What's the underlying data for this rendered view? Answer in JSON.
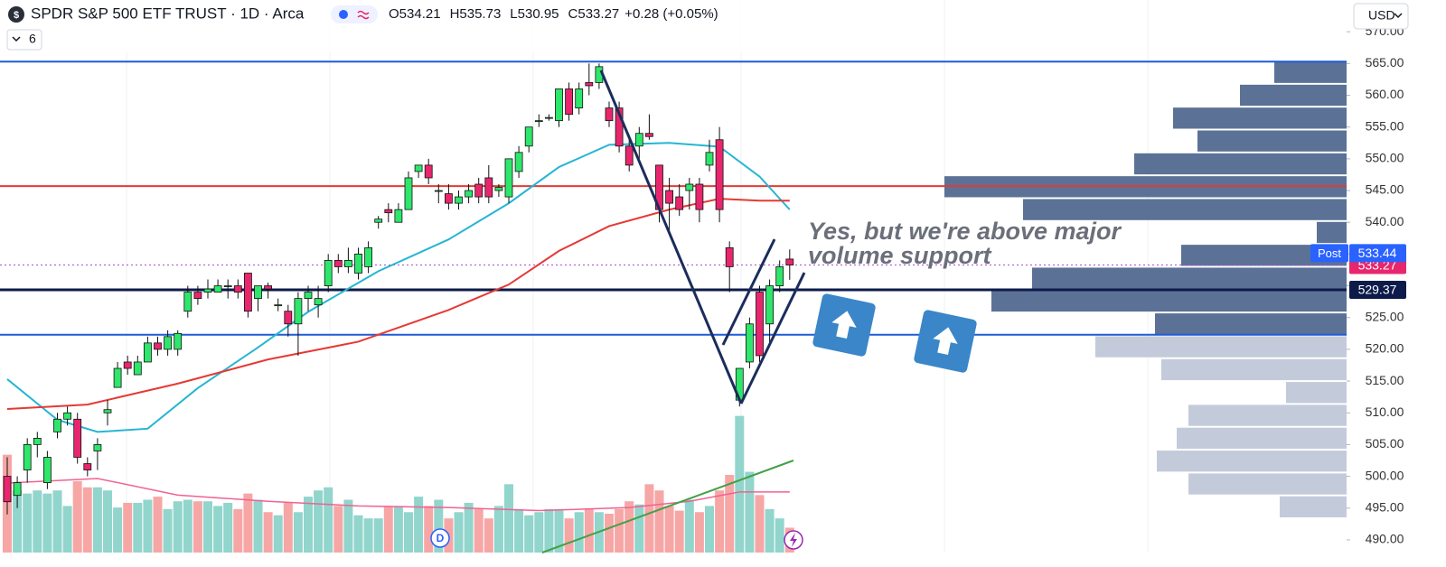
{
  "chart_data": {
    "type": "candlestick",
    "title": "SPDR S&P 500 ETF TRUST · 1D · Arca",
    "ohlc_labels": [
      "O",
      "H",
      "L",
      "C"
    ],
    "change": "+0.28 (+0.05%)",
    "indicator_count": 6,
    "currency": "USD",
    "post_label": "Post",
    "post_price": 533.44,
    "annotation": [
      "Yes, but we're above major",
      "volume support"
    ],
    "event_marker": "D",
    "up_color": "#2ee66b",
    "down_color": "#e8266d",
    "volume_up_color": "#91d5cc",
    "volume_down_color": "#f7a6a6",
    "ylim": [
      488,
      575
    ],
    "yticks": [
      {
        "value": 490,
        "label": "490.00"
      },
      {
        "value": 495,
        "label": "495.00"
      },
      {
        "value": 500,
        "label": "500.00"
      },
      {
        "value": 505,
        "label": "505.00"
      },
      {
        "value": 510,
        "label": "510.00"
      },
      {
        "value": 515,
        "label": "515.00"
      },
      {
        "value": 520,
        "label": "520.00"
      },
      {
        "value": 525,
        "label": "525.00"
      },
      {
        "value": 530,
        "label": "530.00"
      },
      {
        "value": 535,
        "label": "535.00"
      },
      {
        "value": 540,
        "label": "540.00"
      },
      {
        "value": 545,
        "label": "545.00"
      },
      {
        "value": 550,
        "label": "550.00"
      },
      {
        "value": 555,
        "label": "555.00"
      },
      {
        "value": 560,
        "label": "560.00"
      },
      {
        "value": 565,
        "label": "565.00"
      },
      {
        "value": 570,
        "label": "570.00"
      }
    ],
    "open": [
      500,
      497,
      501,
      505,
      499,
      507,
      509,
      509,
      502,
      504,
      510,
      514,
      518,
      516,
      518,
      521,
      520,
      520,
      526,
      529,
      529,
      529,
      530,
      530,
      532,
      528,
      530,
      527,
      526,
      524,
      528,
      527,
      530,
      534,
      533,
      532,
      533,
      540,
      542,
      540,
      542,
      548,
      549,
      545,
      544.5,
      543,
      544,
      546,
      547,
      545,
      544,
      548,
      552,
      556,
      556.5,
      556,
      561,
      558,
      562,
      562,
      558,
      558,
      552,
      552,
      554,
      549,
      545,
      544,
      545,
      546,
      549,
      553,
      536,
      512,
      518,
      529,
      524,
      530,
      534.21
    ],
    "high": [
      503,
      500,
      506,
      507,
      504,
      510,
      511,
      510,
      503,
      506,
      512,
      518,
      519,
      519,
      522,
      522,
      523,
      523,
      530,
      530,
      531,
      531,
      531,
      531,
      532,
      530,
      530.5,
      528,
      527,
      529,
      530,
      530,
      535,
      535,
      536,
      536,
      537,
      541,
      543,
      543,
      548,
      549,
      550,
      546,
      546,
      545,
      546,
      547,
      549,
      546,
      550,
      552,
      555,
      557,
      557,
      561,
      562,
      562,
      565,
      565,
      559,
      559,
      553,
      555,
      557,
      549,
      547,
      546,
      547,
      547,
      553,
      555,
      537,
      517,
      525,
      530,
      531,
      534,
      535.73
    ],
    "low": [
      494,
      495,
      499,
      503,
      498,
      506,
      508,
      502,
      500,
      501,
      508,
      514,
      516,
      516,
      518,
      519,
      519,
      519,
      525,
      527,
      528,
      529,
      528,
      528,
      525,
      526,
      528,
      526,
      522,
      519,
      526,
      525,
      529,
      532,
      532,
      531,
      532,
      539,
      540,
      540,
      542,
      547,
      546,
      543,
      542,
      542,
      543,
      543,
      543,
      544,
      543,
      547,
      551,
      555,
      556,
      555,
      556,
      557,
      560,
      561,
      555,
      551,
      548,
      550,
      553,
      540,
      538,
      541,
      542,
      540,
      548,
      540,
      529,
      511,
      517,
      518,
      521,
      529,
      530.95
    ],
    "close": [
      496,
      499,
      505,
      506,
      503,
      509,
      510,
      503,
      501,
      505,
      510.5,
      517,
      517,
      518,
      521,
      520,
      522,
      522.5,
      529,
      528,
      529.5,
      530,
      530,
      529,
      526,
      530,
      529.5,
      527,
      524,
      528,
      529,
      528,
      534,
      533,
      534,
      535,
      536,
      540.5,
      541.5,
      542,
      547,
      549,
      547,
      545,
      543,
      544,
      545,
      544,
      544,
      545.5,
      550,
      551,
      555,
      556,
      556.5,
      561,
      557,
      561,
      561.5,
      564.5,
      556,
      552,
      549,
      554,
      553.5,
      542,
      543,
      542,
      546,
      542,
      551,
      542,
      533,
      517,
      524,
      519,
      530,
      533,
      533.27
    ],
    "volume": [
      63,
      40,
      38,
      40,
      38,
      40,
      30,
      46,
      42,
      42,
      40,
      29,
      32,
      32,
      34,
      36,
      28,
      33,
      34,
      33,
      33,
      30,
      32,
      28,
      38,
      34,
      26,
      24,
      32,
      26,
      36,
      40,
      42,
      30,
      34,
      24,
      22,
      22,
      30,
      30,
      26,
      36,
      30,
      34,
      22,
      26,
      32,
      28,
      22,
      30,
      44,
      28,
      24,
      26,
      28,
      28,
      22,
      26,
      28,
      26,
      25,
      28,
      33,
      31,
      44,
      40,
      30,
      27,
      34,
      26,
      30,
      40,
      50,
      88,
      52,
      37,
      28,
      22,
      16
    ],
    "vlim": [
      0,
      100
    ],
    "volume_ma": {
      "color": "#f06292",
      "x": [
        0,
        9,
        17,
        26,
        35,
        44,
        53,
        62,
        68,
        73,
        78
      ],
      "values": [
        44.8,
        47.7,
        37,
        33,
        30,
        29,
        27,
        29,
        33,
        39,
        39
      ]
    },
    "ma_lines": [
      {
        "color": "#26b5d4",
        "x": [
          0,
          5,
          9,
          14,
          19,
          25,
          30,
          37,
          44,
          50,
          55,
          60,
          66,
          71,
          75,
          78
        ],
        "values": [
          515.3,
          508.9,
          507,
          507.5,
          513.9,
          520.3,
          525.9,
          532.3,
          537.3,
          543,
          548.7,
          552.2,
          552.5,
          551.9,
          547.2,
          542
        ]
      },
      {
        "color": "#e53935",
        "x": [
          0,
          8,
          17,
          26,
          35,
          44,
          50,
          55,
          60,
          66,
          71,
          75,
          78
        ],
        "values": [
          510.6,
          511.3,
          514.6,
          518.4,
          521.2,
          526.2,
          530.2,
          535.5,
          539.4,
          542,
          543.7,
          543.4,
          543.4
        ]
      }
    ],
    "levels": [
      {
        "value": 565.3,
        "color": "#1e5bd6"
      },
      {
        "value": 545.7,
        "color": "#e53935"
      },
      {
        "value": 529.37,
        "color": "#0d1b4a",
        "label": "529.37"
      },
      {
        "value": 522.3,
        "color": "#1e5bd6"
      }
    ],
    "profile_bins": [
      565.4,
      561.8,
      558.2,
      554.6,
      551,
      547.4,
      543.8,
      540.2,
      536.6,
      533,
      529.4,
      525.8,
      522.2,
      518.6,
      515,
      511.4,
      507.8,
      504.2,
      500.6,
      497,
      493.4
    ],
    "profile_values": [
      80,
      118,
      192,
      165,
      235,
      445,
      358,
      33,
      183,
      348,
      393,
      212,
      278,
      205,
      67,
      175,
      188,
      210,
      175,
      74
    ],
    "profile_colors": [
      "#5b7296",
      "#5b7296",
      "#5b7296",
      "#5b7296",
      "#5b7296",
      "#5b7296",
      "#5b7296",
      "#5b7296",
      "#5b7296",
      "#5b7296",
      "#5b7296",
      "#5b7296",
      "#c3cbdb",
      "#c3cbdb",
      "#c3cbdb",
      "#c3cbdb",
      "#c3cbdb",
      "#c3cbdb",
      "#c3cbdb",
      "#c3cbdb"
    ],
    "plim": [
      0,
      500
    ]
  }
}
